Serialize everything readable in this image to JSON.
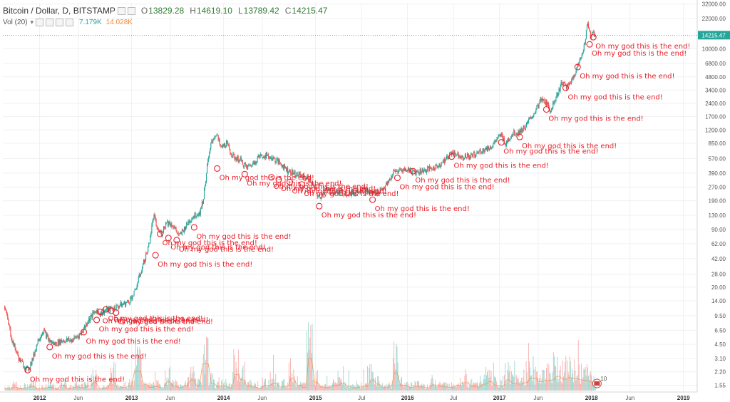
{
  "header": {
    "symbol": "Bitcoin / Dollar, D, BITSTAMP",
    "ohlc": [
      {
        "k": "O",
        "v": "13829.28"
      },
      {
        "k": "H",
        "v": "14619.10"
      },
      {
        "k": "L",
        "v": "13789.42"
      },
      {
        "k": "C",
        "v": "14215.47"
      }
    ],
    "vol_label": "Vol (20)",
    "vol_value_1": "7.179K",
    "vol_value_2": "14.028K"
  },
  "colors": {
    "up": "#26a69a",
    "down": "#ef5350",
    "annotation": "#e8202a",
    "last_price_box": "#26a69a"
  },
  "chart_data": {
    "type": "candlestick",
    "y_scale": "log",
    "ylim": [
      1.4,
      33000
    ],
    "last_price": 14215.47,
    "last_price_label": "14215.47",
    "y_ticks": [
      {
        "v": 32000,
        "label": "32000.00"
      },
      {
        "v": 22000,
        "label": "22000.00"
      },
      {
        "v": 10000,
        "label": "10000.00"
      },
      {
        "v": 6800,
        "label": "6800.00"
      },
      {
        "v": 4800,
        "label": "4800.00"
      },
      {
        "v": 3400,
        "label": "3400.00"
      },
      {
        "v": 2400,
        "label": "2400.00"
      },
      {
        "v": 1700,
        "label": "1700.00"
      },
      {
        "v": 1200,
        "label": "1200.00"
      },
      {
        "v": 850,
        "label": "850.00"
      },
      {
        "v": 570,
        "label": "570.00"
      },
      {
        "v": 390,
        "label": "390.00"
      },
      {
        "v": 270,
        "label": "270.00"
      },
      {
        "v": 190,
        "label": "190.00"
      },
      {
        "v": 130,
        "label": "130.00"
      },
      {
        "v": 90,
        "label": "90.00"
      },
      {
        "v": 62,
        "label": "62.00"
      },
      {
        "v": 42,
        "label": "42.00"
      },
      {
        "v": 28,
        "label": "28.00"
      },
      {
        "v": 20,
        "label": "20.00"
      },
      {
        "v": 14,
        "label": "14.00"
      },
      {
        "v": 9.5,
        "label": "9.50"
      },
      {
        "v": 6.5,
        "label": "6.50"
      },
      {
        "v": 4.5,
        "label": "4.50"
      },
      {
        "v": 3.1,
        "label": "3.10"
      },
      {
        "v": 2.2,
        "label": "2.20"
      },
      {
        "v": 1.55,
        "label": "1.55"
      }
    ],
    "x_ticks": [
      {
        "t": 2012.0,
        "label": "2012",
        "bold": true
      },
      {
        "t": 2012.42,
        "label": "Jun",
        "bold": false
      },
      {
        "t": 2013.0,
        "label": "2013",
        "bold": true
      },
      {
        "t": 2013.42,
        "label": "Jun",
        "bold": false
      },
      {
        "t": 2014.0,
        "label": "2014",
        "bold": true
      },
      {
        "t": 2014.42,
        "label": "Jun",
        "bold": false
      },
      {
        "t": 2015.0,
        "label": "2015",
        "bold": true
      },
      {
        "t": 2015.5,
        "label": "Jul",
        "bold": false
      },
      {
        "t": 2016.0,
        "label": "2016",
        "bold": true
      },
      {
        "t": 2016.5,
        "label": "Jul",
        "bold": false
      },
      {
        "t": 2017.0,
        "label": "2017",
        "bold": true
      },
      {
        "t": 2017.42,
        "label": "Jun",
        "bold": false
      },
      {
        "t": 2018.0,
        "label": "2018",
        "bold": true
      },
      {
        "t": 2018.42,
        "label": "Jun",
        "bold": false
      },
      {
        "t": 2019.0,
        "label": "2019",
        "bold": true
      }
    ],
    "price_path": [
      [
        2011.62,
        12
      ],
      [
        2011.7,
        5
      ],
      [
        2011.78,
        3
      ],
      [
        2011.87,
        2.3
      ],
      [
        2011.93,
        3.2
      ],
      [
        2011.98,
        5
      ],
      [
        2012.04,
        6.5
      ],
      [
        2012.1,
        5
      ],
      [
        2012.16,
        4.5
      ],
      [
        2012.25,
        5
      ],
      [
        2012.35,
        5
      ],
      [
        2012.45,
        6
      ],
      [
        2012.53,
        8.5
      ],
      [
        2012.62,
        11
      ],
      [
        2012.66,
        10
      ],
      [
        2012.72,
        11
      ],
      [
        2012.8,
        11.5
      ],
      [
        2012.88,
        12.5
      ],
      [
        2012.96,
        13.5
      ],
      [
        2013.03,
        17
      ],
      [
        2013.1,
        30
      ],
      [
        2013.18,
        55
      ],
      [
        2013.24,
        130
      ],
      [
        2013.28,
        90
      ],
      [
        2013.32,
        80
      ],
      [
        2013.38,
        110
      ],
      [
        2013.45,
        100
      ],
      [
        2013.52,
        75
      ],
      [
        2013.58,
        95
      ],
      [
        2013.66,
        125
      ],
      [
        2013.74,
        140
      ],
      [
        2013.78,
        200
      ],
      [
        2013.82,
        450
      ],
      [
        2013.87,
        900
      ],
      [
        2013.92,
        1100
      ],
      [
        2013.97,
        750
      ],
      [
        2014.03,
        850
      ],
      [
        2014.1,
        600
      ],
      [
        2014.18,
        550
      ],
      [
        2014.25,
        450
      ],
      [
        2014.32,
        500
      ],
      [
        2014.38,
        600
      ],
      [
        2014.45,
        620
      ],
      [
        2014.53,
        580
      ],
      [
        2014.62,
        500
      ],
      [
        2014.7,
        420
      ],
      [
        2014.78,
        380
      ],
      [
        2014.86,
        360
      ],
      [
        2014.94,
        330
      ],
      [
        2015.04,
        200
      ],
      [
        2015.1,
        250
      ],
      [
        2015.2,
        240
      ],
      [
        2015.3,
        235
      ],
      [
        2015.4,
        230
      ],
      [
        2015.5,
        260
      ],
      [
        2015.6,
        230
      ],
      [
        2015.68,
        240
      ],
      [
        2015.78,
        290
      ],
      [
        2015.85,
        400
      ],
      [
        2015.92,
        420
      ],
      [
        2016.0,
        430
      ],
      [
        2016.08,
        400
      ],
      [
        2016.18,
        420
      ],
      [
        2016.3,
        450
      ],
      [
        2016.42,
        560
      ],
      [
        2016.48,
        680
      ],
      [
        2016.52,
        650
      ],
      [
        2016.6,
        600
      ],
      [
        2016.7,
        610
      ],
      [
        2016.8,
        700
      ],
      [
        2016.9,
        760
      ],
      [
        2016.98,
        960
      ],
      [
        2017.02,
        1050
      ],
      [
        2017.06,
        850
      ],
      [
        2017.15,
        1100
      ],
      [
        2017.22,
        1150
      ],
      [
        2017.28,
        1300
      ],
      [
        2017.36,
        1750
      ],
      [
        2017.45,
        2600
      ],
      [
        2017.5,
        2500
      ],
      [
        2017.55,
        2000
      ],
      [
        2017.62,
        2900
      ],
      [
        2017.68,
        4200
      ],
      [
        2017.73,
        3600
      ],
      [
        2017.78,
        4300
      ],
      [
        2017.84,
        6000
      ],
      [
        2017.88,
        7500
      ],
      [
        2017.92,
        11000
      ],
      [
        2017.96,
        19500
      ],
      [
        2017.99,
        14000
      ],
      [
        2018.02,
        15000
      ],
      [
        2018.04,
        14215
      ]
    ],
    "volume_levels": [
      0.06,
      0.1,
      0.05,
      0.08,
      0.12,
      0.05,
      0.07,
      0.09,
      0.04,
      0.15,
      0.06,
      0.1,
      0.08,
      0.12,
      0.22,
      0.06,
      0.07,
      0.3,
      0.1,
      0.09,
      0.12,
      0.55,
      0.18,
      0.09,
      0.11,
      0.08,
      0.25,
      0.12,
      0.08,
      0.14,
      0.3,
      0.12,
      0.75,
      0.2,
      0.1,
      0.12,
      0.08,
      0.45,
      0.3,
      0.12,
      0.1,
      0.07,
      0.15,
      0.2,
      0.1,
      0.12,
      0.35,
      0.15,
      0.09,
      0.9,
      0.22,
      0.1,
      0.08,
      0.14,
      0.2,
      0.12,
      0.07,
      0.1,
      0.12,
      0.3,
      0.18,
      0.08,
      0.1,
      0.5,
      0.15,
      0.09,
      0.12,
      0.1,
      0.08,
      0.16,
      0.12,
      0.1,
      0.09,
      0.14,
      0.22,
      0.12,
      0.1,
      0.18,
      0.25,
      0.15,
      0.12,
      0.3,
      0.2,
      0.18,
      0.22,
      0.35,
      0.25,
      0.28,
      0.3,
      0.4,
      0.32,
      0.36,
      0.33,
      0.3,
      0.28,
      0.22
    ],
    "annotations": [
      {
        "t": 2011.87,
        "p": 2.3,
        "text": "Oh my god this is the end!"
      },
      {
        "t": 2012.11,
        "p": 4.2,
        "text": "Oh my god this is the end!"
      },
      {
        "t": 2012.48,
        "p": 6.2,
        "text": "Oh my god this is the end!"
      },
      {
        "t": 2012.62,
        "p": 8.5,
        "text": "Oh my god this is the end!"
      },
      {
        "t": 2012.66,
        "p": 10.5,
        "text": "Oh my god this is the end!"
      },
      {
        "t": 2012.72,
        "p": 11.2,
        "text": "Oh my god this is the end!"
      },
      {
        "t": 2012.78,
        "p": 10.8,
        "text": "Oh my god this is the end!"
      },
      {
        "t": 2012.83,
        "p": 10.3,
        "text": "Oh my god this is the end!"
      },
      {
        "t": 2013.26,
        "p": 46,
        "text": "Oh my god this is the end!"
      },
      {
        "t": 2013.31,
        "p": 80,
        "text": "Oh my god this is the end!"
      },
      {
        "t": 2013.4,
        "p": 72,
        "text": "Oh my god this is the end!"
      },
      {
        "t": 2013.49,
        "p": 68,
        "text": "Oh my god this is the end!"
      },
      {
        "t": 2013.68,
        "p": 95,
        "text": "Oh my god this is the end!"
      },
      {
        "t": 2013.93,
        "p": 440,
        "text": "Oh my god this is the end!"
      },
      {
        "t": 2014.23,
        "p": 380,
        "text": "Oh my god this is the end!"
      },
      {
        "t": 2014.52,
        "p": 350,
        "text": "Oh my god this is the end!"
      },
      {
        "t": 2014.6,
        "p": 330,
        "text": "Oh my god this is the end!"
      },
      {
        "t": 2014.72,
        "p": 310,
        "text": "Oh my god this is the end!"
      },
      {
        "t": 2014.85,
        "p": 290,
        "text": "Oh my god this is the end!"
      },
      {
        "t": 2015.04,
        "p": 165,
        "text": "Oh my god this is the end!"
      },
      {
        "t": 2015.62,
        "p": 195,
        "text": "Oh my god this is the end!"
      },
      {
        "t": 2015.89,
        "p": 345,
        "text": "Oh my god this is the end!"
      },
      {
        "t": 2016.06,
        "p": 410,
        "text": "Oh my god this is the end!"
      },
      {
        "t": 2016.48,
        "p": 600,
        "text": "Oh my god this is the end!"
      },
      {
        "t": 2017.02,
        "p": 870,
        "text": "Oh my god this is the end!"
      },
      {
        "t": 2017.22,
        "p": 1000,
        "text": "Oh my god this is the end!"
      },
      {
        "t": 2017.51,
        "p": 2050,
        "text": "Oh my god this is the end!"
      },
      {
        "t": 2017.72,
        "p": 3600,
        "text": "Oh my god this is the end!"
      },
      {
        "t": 2017.85,
        "p": 6200,
        "text": "Oh my god this is the end!"
      },
      {
        "t": 2017.98,
        "p": 11200,
        "text": "Oh my god this is the end!"
      },
      {
        "t": 2018.02,
        "p": 13500,
        "text": "Oh my god this is the end!"
      }
    ],
    "badge_label": "10"
  }
}
